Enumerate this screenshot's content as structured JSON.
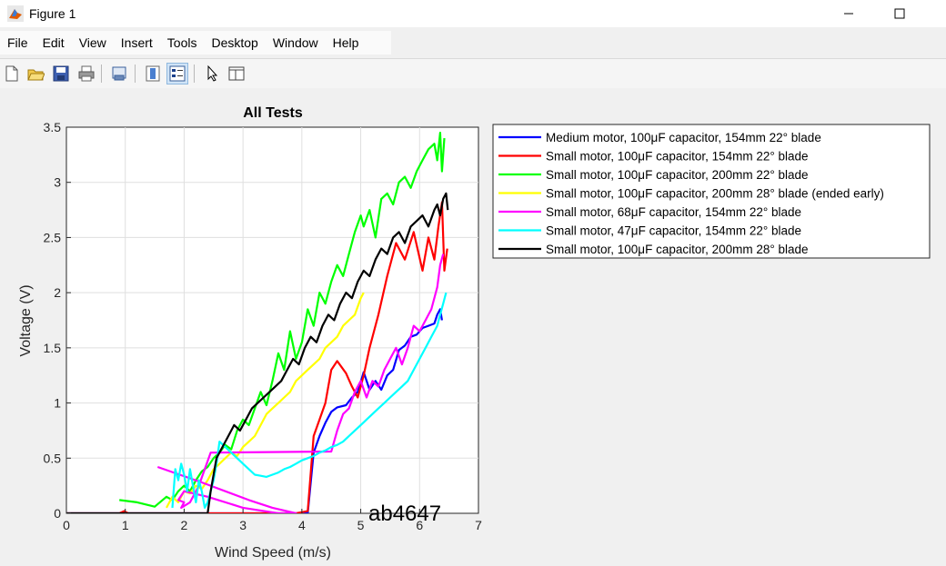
{
  "window": {
    "title": "Figure 1"
  },
  "menu": [
    "File",
    "Edit",
    "View",
    "Insert",
    "Tools",
    "Desktop",
    "Window",
    "Help"
  ],
  "toolbar_icons": [
    "new-figure-icon",
    "open-file-icon",
    "save-icon",
    "print-icon",
    "link-plot-icon",
    "colorbar-icon",
    "legend-icon",
    "edit-plot-arrow-icon",
    "property-inspector-icon"
  ],
  "colors": {
    "medium_100": "#0000ff",
    "small_100_154": "#ff0000",
    "small_100_200_22": "#00ff00",
    "small_100_200_28_early": "#ffff00",
    "small_68": "#ff00ff",
    "small_47": "#00ffff",
    "small_100_200_28": "#000000"
  },
  "chart_data": {
    "type": "line",
    "title": "All Tests",
    "xlabel": "Wind Speed (m/s)",
    "ylabel": "Voltage (V)",
    "xlim": [
      0,
      7
    ],
    "ylim": [
      0,
      3.5
    ],
    "xticks": [
      "0",
      "1",
      "2",
      "3",
      "4",
      "5",
      "6",
      "7"
    ],
    "yticks": [
      "0",
      "0.5",
      "1",
      "1.5",
      "2",
      "2.5",
      "3",
      "3.5"
    ],
    "grid": true,
    "legend_position": "outside-right",
    "annotation": "ab4647",
    "series": [
      {
        "name": "Medium motor, 100μF capacitor, 154mm 22° blade",
        "color_key": "medium_100",
        "x": [
          0,
          1.5,
          4.1,
          4.2,
          4.3,
          4.4,
          4.5,
          4.6,
          4.75,
          4.85,
          4.95,
          5.05,
          5.15,
          5.25,
          5.35,
          5.45,
          5.55,
          5.65,
          5.75,
          5.85,
          5.95,
          6.05,
          6.15,
          6.25,
          6.3,
          6.35,
          6.38
        ],
        "y": [
          0,
          0,
          0,
          0.55,
          0.7,
          0.82,
          0.92,
          0.96,
          0.98,
          1.05,
          1.1,
          1.28,
          1.12,
          1.2,
          1.12,
          1.25,
          1.3,
          1.48,
          1.52,
          1.6,
          1.62,
          1.68,
          1.7,
          1.72,
          1.8,
          1.85,
          1.75
        ]
      },
      {
        "name": "Small motor, 100μF capacitor, 154mm 22° blade",
        "color_key": "small_100_154",
        "x": [
          0,
          0.9,
          0.98,
          1.05,
          3.9,
          4.1,
          4.2,
          4.3,
          4.4,
          4.5,
          4.6,
          4.75,
          4.85,
          4.95,
          5.05,
          5.15,
          5.3,
          5.45,
          5.6,
          5.75,
          5.9,
          6.05,
          6.15,
          6.25,
          6.32,
          6.38,
          6.42,
          6.47
        ],
        "y": [
          0,
          0,
          0.02,
          0,
          0,
          0.02,
          0.7,
          0.85,
          1.0,
          1.3,
          1.38,
          1.27,
          1.15,
          1.05,
          1.25,
          1.5,
          1.8,
          2.15,
          2.45,
          2.3,
          2.55,
          2.2,
          2.5,
          2.3,
          2.6,
          2.82,
          2.2,
          2.4
        ]
      },
      {
        "name": "Small motor, 100μF capacitor, 200mm 22° blade",
        "color_key": "small_100_200_22",
        "x": [
          0.9,
          1.2,
          1.5,
          1.7,
          1.8,
          1.9,
          2.0,
          2.1,
          2.2,
          2.3,
          2.4,
          2.5,
          2.6,
          2.7,
          2.8,
          2.9,
          3.0,
          3.1,
          3.2,
          3.3,
          3.4,
          3.5,
          3.6,
          3.7,
          3.8,
          3.9,
          4.0,
          4.1,
          4.2,
          4.3,
          4.4,
          4.5,
          4.6,
          4.7,
          4.8,
          4.9,
          5.0,
          5.05,
          5.15,
          5.25,
          5.35,
          5.45,
          5.55,
          5.65,
          5.75,
          5.85,
          5.95,
          6.05,
          6.15,
          6.25,
          6.3,
          6.35,
          6.38,
          6.42
        ],
        "y": [
          0.12,
          0.1,
          0.06,
          0.15,
          0.12,
          0.2,
          0.25,
          0.2,
          0.3,
          0.38,
          0.42,
          0.5,
          0.55,
          0.62,
          0.58,
          0.75,
          0.85,
          0.8,
          0.95,
          1.1,
          0.98,
          1.2,
          1.45,
          1.3,
          1.65,
          1.4,
          1.55,
          1.85,
          1.7,
          2.0,
          1.9,
          2.1,
          2.25,
          2.15,
          2.35,
          2.55,
          2.7,
          2.6,
          2.75,
          2.5,
          2.85,
          2.9,
          2.8,
          3.0,
          3.05,
          2.95,
          3.1,
          3.2,
          3.3,
          3.35,
          3.2,
          3.45,
          3.1,
          3.4
        ]
      },
      {
        "name": "Small motor, 100μF capacitor, 200mm 28° blade (ended early)",
        "color_key": "small_100_200_28_early",
        "x": [
          1.7,
          1.8,
          1.9,
          2.0,
          2.1,
          2.2,
          2.3,
          2.4,
          2.5,
          2.6,
          2.7,
          2.8,
          2.9,
          3.0,
          3.1,
          3.2,
          3.3,
          3.4,
          3.5,
          3.6,
          3.7,
          3.8,
          3.9,
          4.0,
          4.1,
          4.2,
          4.3,
          4.4,
          4.5,
          4.6,
          4.7,
          4.8,
          4.9,
          5.0,
          5.05
        ],
        "y": [
          0.05,
          0.15,
          0.1,
          0.2,
          0.18,
          0.25,
          0.22,
          0.3,
          0.4,
          0.45,
          0.5,
          0.55,
          0.52,
          0.6,
          0.65,
          0.7,
          0.8,
          0.9,
          0.95,
          1.0,
          1.05,
          1.1,
          1.2,
          1.25,
          1.3,
          1.35,
          1.4,
          1.5,
          1.55,
          1.6,
          1.7,
          1.75,
          1.8,
          1.95,
          2.0
        ]
      },
      {
        "name": "Small motor, 68μF capacitor, 154mm 22° blade",
        "color_key": "small_68",
        "x": [
          1.55,
          2.3,
          3.1,
          3.5,
          3.9,
          3.6,
          3.0,
          2.4,
          2.0,
          1.9,
          2.0,
          1.95,
          2.1,
          2.25,
          2.45,
          4.5,
          4.6,
          4.7,
          4.8,
          4.9,
          5.0,
          5.1,
          5.2,
          5.3,
          5.4,
          5.5,
          5.6,
          5.7,
          5.8,
          5.9,
          6.0,
          6.1,
          6.2,
          6.3,
          6.35,
          6.4
        ],
        "y": [
          0.42,
          0.28,
          0.12,
          0.05,
          0.0,
          0.0,
          0.05,
          0.15,
          0.2,
          0.12,
          0.1,
          0.05,
          0.1,
          0.25,
          0.55,
          0.56,
          0.75,
          0.9,
          0.95,
          1.1,
          1.2,
          1.05,
          1.2,
          1.15,
          1.3,
          1.4,
          1.5,
          1.35,
          1.5,
          1.7,
          1.65,
          1.75,
          1.85,
          2.05,
          2.25,
          2.35
        ]
      },
      {
        "name": "Small motor, 47μF capacitor, 154mm 22° blade",
        "color_key": "small_47",
        "x": [
          1.8,
          1.85,
          1.9,
          1.95,
          2.0,
          2.05,
          2.1,
          2.15,
          2.2,
          2.25,
          2.3,
          2.35,
          2.4,
          2.45,
          2.5,
          2.55,
          2.6,
          2.7,
          2.8,
          2.9,
          3.0,
          3.1,
          3.2,
          3.3,
          3.4,
          3.5,
          3.6,
          3.7,
          3.8,
          3.9,
          4.0,
          4.1,
          4.2,
          4.3,
          4.4,
          4.5,
          4.6,
          4.7,
          4.8,
          4.9,
          5.0,
          5.1,
          5.2,
          5.3,
          5.4,
          5.5,
          5.6,
          5.7,
          5.8,
          5.9,
          6.0,
          6.1,
          6.2,
          6.3,
          6.35,
          6.4,
          6.45
        ],
        "y": [
          0.05,
          0.4,
          0.3,
          0.45,
          0.35,
          0.2,
          0.4,
          0.25,
          0.1,
          0.3,
          0.2,
          0.05,
          0.1,
          0.2,
          0.3,
          0.45,
          0.65,
          0.6,
          0.55,
          0.5,
          0.45,
          0.4,
          0.35,
          0.34,
          0.33,
          0.35,
          0.37,
          0.4,
          0.42,
          0.45,
          0.48,
          0.5,
          0.52,
          0.55,
          0.57,
          0.6,
          0.62,
          0.65,
          0.7,
          0.75,
          0.8,
          0.85,
          0.9,
          0.95,
          1.0,
          1.05,
          1.1,
          1.15,
          1.2,
          1.3,
          1.4,
          1.5,
          1.6,
          1.7,
          1.8,
          1.9,
          2.0
        ]
      },
      {
        "name": "Small motor, 100μF capacitor, 200mm 28° blade",
        "color_key": "small_100_200_28",
        "x": [
          0,
          1.0,
          2.0,
          2.4,
          2.45,
          2.55,
          2.65,
          2.75,
          2.85,
          2.95,
          3.05,
          3.15,
          3.25,
          3.35,
          3.45,
          3.55,
          3.65,
          3.75,
          3.85,
          3.95,
          4.05,
          4.15,
          4.25,
          4.35,
          4.45,
          4.55,
          4.65,
          4.75,
          4.85,
          4.95,
          5.05,
          5.15,
          5.25,
          5.35,
          5.45,
          5.55,
          5.65,
          5.75,
          5.85,
          5.95,
          6.05,
          6.15,
          6.25,
          6.3,
          6.35,
          6.4,
          6.45,
          6.48
        ],
        "y": [
          0,
          0,
          0,
          0,
          0.2,
          0.5,
          0.6,
          0.7,
          0.8,
          0.75,
          0.85,
          0.95,
          1.0,
          1.05,
          1.1,
          1.15,
          1.2,
          1.3,
          1.4,
          1.35,
          1.5,
          1.6,
          1.55,
          1.7,
          1.8,
          1.75,
          1.9,
          2.0,
          1.95,
          2.1,
          2.2,
          2.15,
          2.3,
          2.4,
          2.35,
          2.5,
          2.55,
          2.45,
          2.6,
          2.65,
          2.7,
          2.6,
          2.75,
          2.8,
          2.7,
          2.85,
          2.9,
          2.75
        ]
      }
    ]
  }
}
